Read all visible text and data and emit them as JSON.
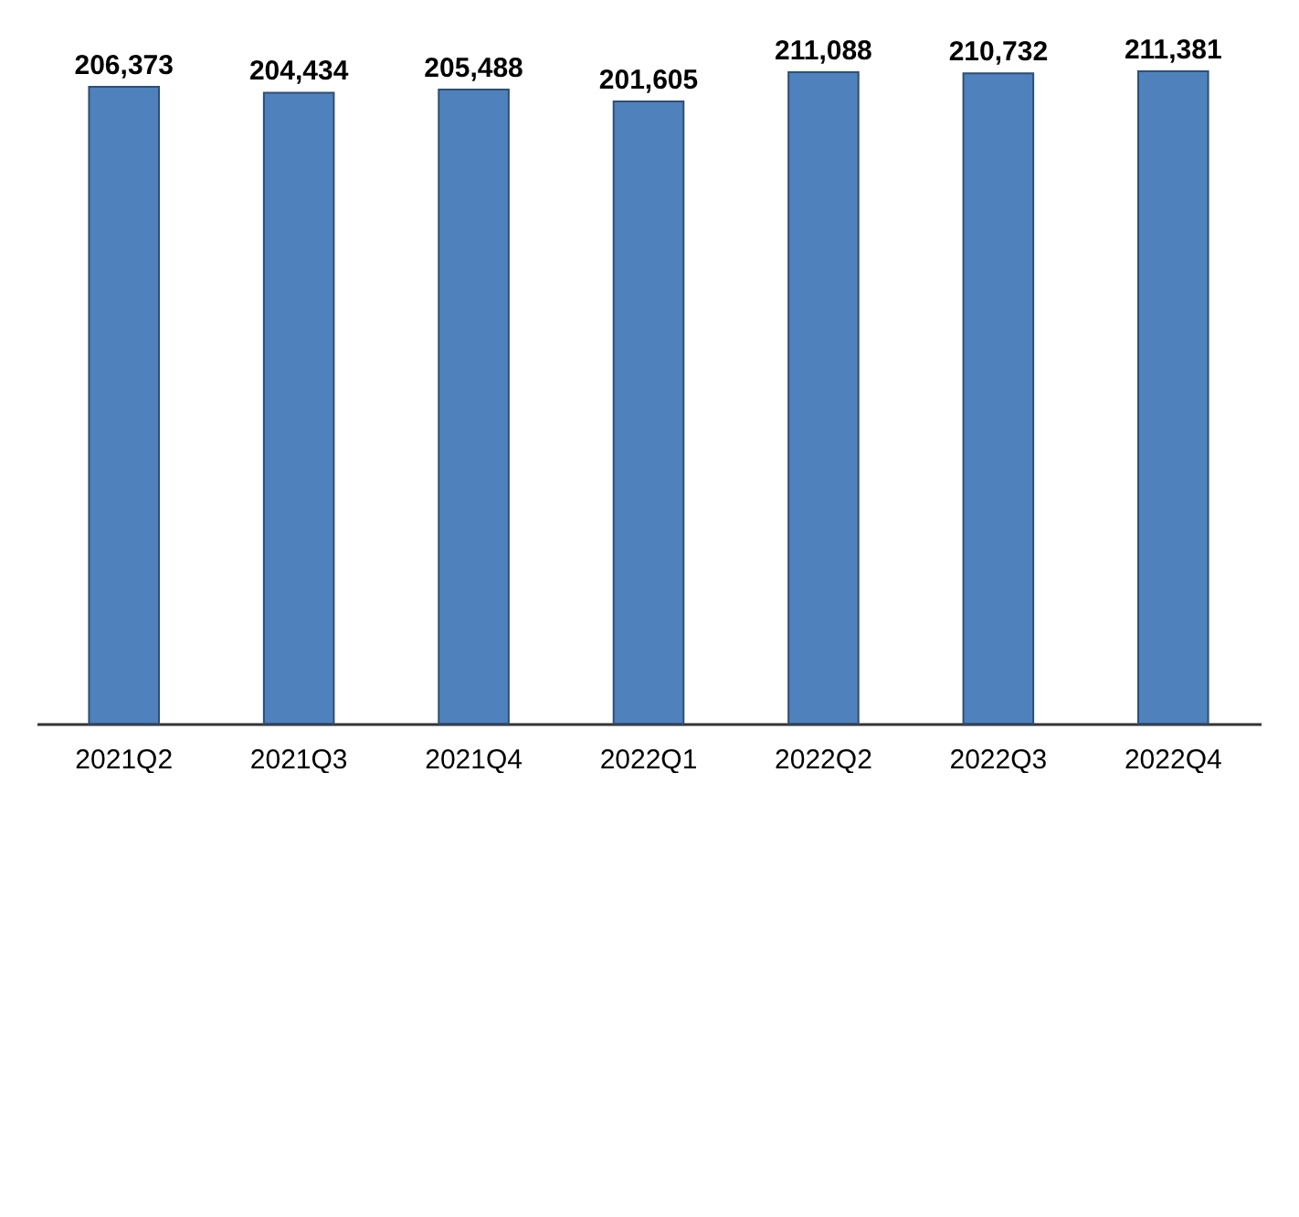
{
  "chart_data": {
    "type": "bar",
    "categories": [
      "2021Q2",
      "2021Q3",
      "2021Q4",
      "2022Q1",
      "2022Q2",
      "2022Q3",
      "2022Q4"
    ],
    "values": [
      206373,
      204434,
      205488,
      201605,
      211088,
      210732,
      211381
    ],
    "value_labels": [
      "206,373",
      "204,434",
      "205,488",
      "201,605",
      "211,088",
      "210,732",
      "211,381"
    ],
    "color": "#4f81bd",
    "tick_labels": "x"
  }
}
